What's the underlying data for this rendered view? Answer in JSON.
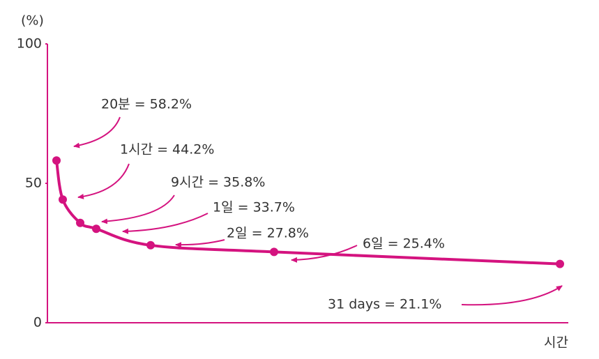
{
  "chart_data": {
    "type": "line",
    "y_label": "(%)",
    "x_label": "시간",
    "values": [
      58.2,
      44.2,
      35.8,
      33.7,
      27.8,
      25.4,
      21.1
    ],
    "value_labels": [
      "20분 = 58.2%",
      "1시간 = 44.2%",
      "9시간 = 35.8%",
      "1일 = 33.7%",
      "2일 = 27.8%",
      "6일 = 25.4%",
      "31 days = 21.1%"
    ],
    "color": "#d4137f",
    "ylim": [
      0,
      100
    ],
    "yticks": [
      0,
      50,
      100
    ],
    "grid": false
  }
}
